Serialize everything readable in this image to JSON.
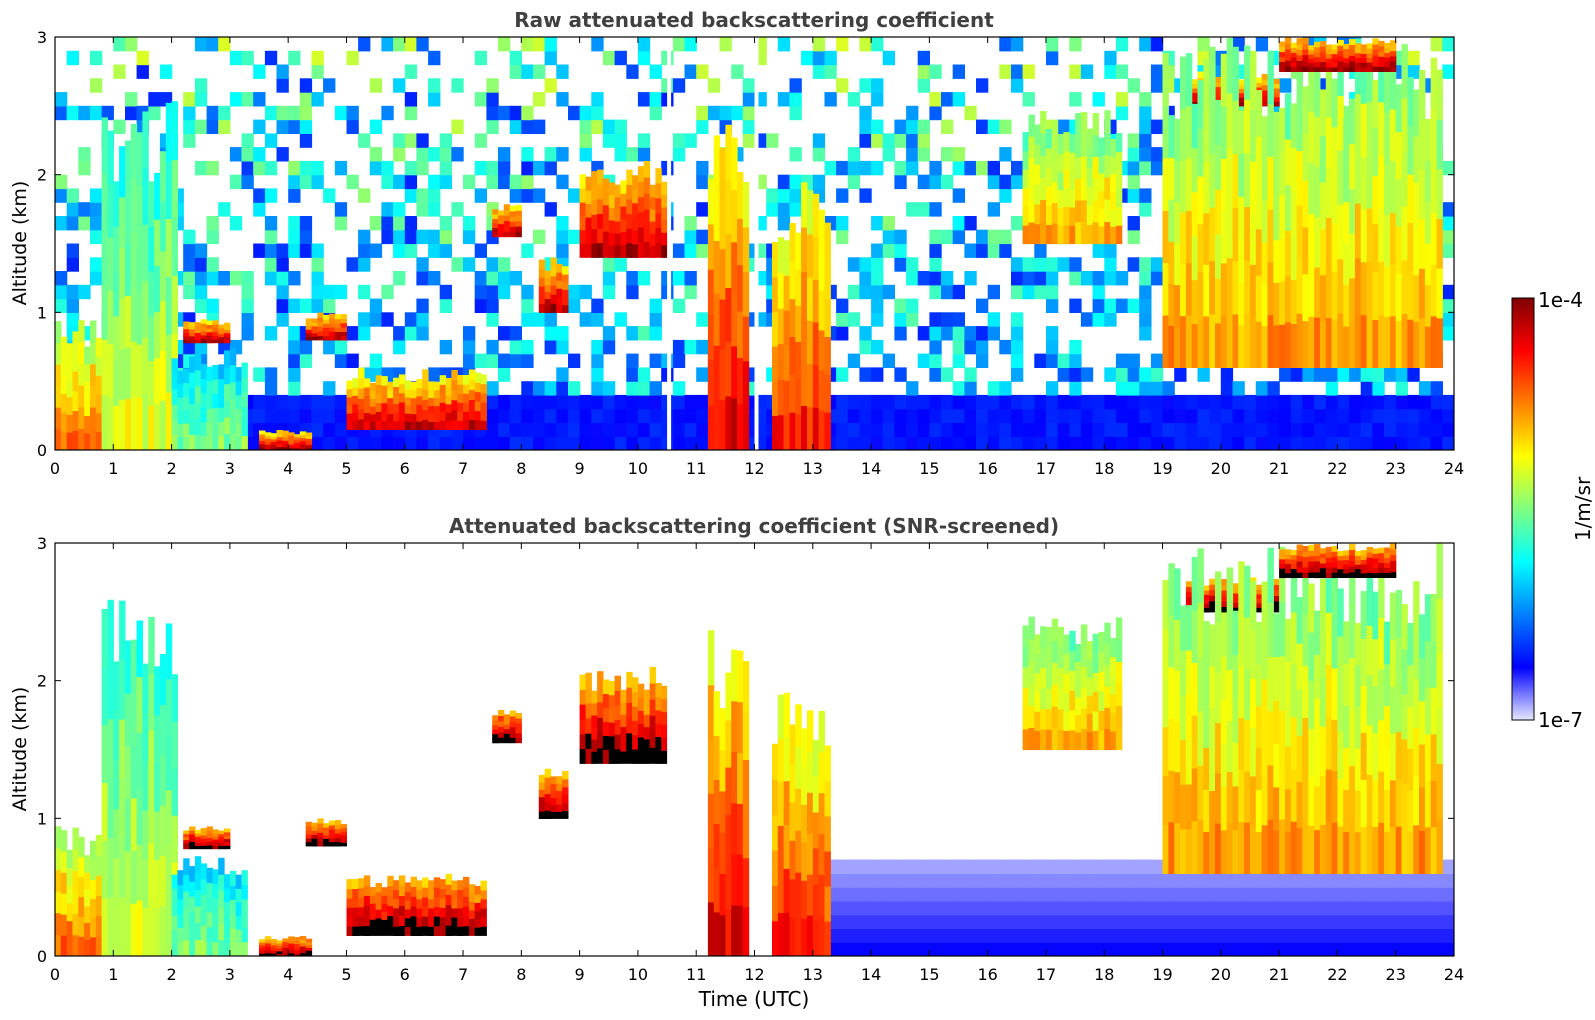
{
  "chart_data": [
    {
      "type": "heatmap",
      "title": "Raw attenuated backscattering coefficient",
      "xlabel": "",
      "ylabel": "Altitude (km)",
      "xlim": [
        0,
        24
      ],
      "ylim": [
        0,
        3
      ],
      "xticks": [
        "0",
        "1",
        "2",
        "3",
        "4",
        "5",
        "6",
        "7",
        "8",
        "9",
        "10",
        "11",
        "12",
        "13",
        "14",
        "15",
        "16",
        "17",
        "18",
        "19",
        "20",
        "21",
        "22",
        "23",
        "24"
      ],
      "yticks": [
        "0",
        "1",
        "2",
        "3"
      ],
      "background_noise_above_km": 0.4,
      "data_gaps_utc": [
        10.5,
        10.8,
        12.0,
        12.3
      ],
      "features": [
        {
          "start": 0.0,
          "end": 0.8,
          "base": 0.0,
          "top": 0.95,
          "level": 0.78
        },
        {
          "start": 0.8,
          "end": 2.1,
          "base": 0.0,
          "top": 2.6,
          "level": 0.6
        },
        {
          "start": 2.0,
          "end": 3.3,
          "base": 0.0,
          "top": 0.75,
          "level": 0.5
        },
        {
          "start": 2.2,
          "end": 3.0,
          "base": 0.78,
          "top": 0.95,
          "level": 0.95
        },
        {
          "start": 3.5,
          "end": 4.4,
          "base": 0.0,
          "top": 0.15,
          "level": 0.95
        },
        {
          "start": 4.3,
          "end": 5.0,
          "base": 0.8,
          "top": 1.0,
          "level": 0.95
        },
        {
          "start": 5.0,
          "end": 7.4,
          "base": 0.15,
          "top": 0.6,
          "level": 0.92
        },
        {
          "start": 7.5,
          "end": 8.0,
          "base": 1.55,
          "top": 1.8,
          "level": 0.95
        },
        {
          "start": 8.3,
          "end": 8.8,
          "base": 1.0,
          "top": 1.4,
          "level": 0.95
        },
        {
          "start": 9.0,
          "end": 10.5,
          "base": 1.4,
          "top": 2.1,
          "level": 0.95
        },
        {
          "start": 11.2,
          "end": 11.9,
          "base": 0.0,
          "top": 2.4,
          "level": 0.9
        },
        {
          "start": 12.3,
          "end": 13.3,
          "base": 0.0,
          "top": 2.0,
          "level": 0.85
        },
        {
          "start": 16.6,
          "end": 18.3,
          "base": 1.5,
          "top": 2.5,
          "level": 0.7
        },
        {
          "start": 19.4,
          "end": 21.0,
          "base": 2.5,
          "top": 2.75,
          "level": 0.95
        },
        {
          "start": 19.0,
          "end": 23.8,
          "base": 0.6,
          "top": 3.0,
          "level": 0.72
        },
        {
          "start": 21.0,
          "end": 23.0,
          "base": 2.75,
          "top": 3.0,
          "level": 0.97
        }
      ]
    },
    {
      "type": "heatmap",
      "title": "Attenuated backscattering coefficient (SNR-screened)",
      "xlabel": "Time (UTC)",
      "ylabel": "Altitude (km)",
      "xlim": [
        0,
        24
      ],
      "ylim": [
        0,
        3
      ],
      "xticks": [
        "0",
        "1",
        "2",
        "3",
        "4",
        "5",
        "6",
        "7",
        "8",
        "9",
        "10",
        "11",
        "12",
        "13",
        "14",
        "15",
        "16",
        "17",
        "18",
        "19",
        "20",
        "21",
        "22",
        "23",
        "24"
      ],
      "yticks": [
        "0",
        "1",
        "2",
        "3"
      ],
      "screened_noise_layer_km": [
        0.0,
        0.7
      ],
      "data_gaps_utc": [
        10.5,
        10.8,
        12.0,
        12.3
      ],
      "features": [
        {
          "start": 0.0,
          "end": 0.8,
          "base": 0.0,
          "top": 0.95,
          "level": 0.78
        },
        {
          "start": 0.8,
          "end": 2.1,
          "base": 0.0,
          "top": 2.6,
          "level": 0.6
        },
        {
          "start": 2.0,
          "end": 3.3,
          "base": 0.0,
          "top": 0.75,
          "level": 0.5
        },
        {
          "start": 2.2,
          "end": 3.0,
          "base": 0.78,
          "top": 0.95,
          "level": 1.0
        },
        {
          "start": 3.5,
          "end": 4.4,
          "base": 0.0,
          "top": 0.15,
          "level": 1.0
        },
        {
          "start": 4.3,
          "end": 5.0,
          "base": 0.8,
          "top": 1.0,
          "level": 1.0
        },
        {
          "start": 5.0,
          "end": 7.4,
          "base": 0.15,
          "top": 0.6,
          "level": 1.0
        },
        {
          "start": 7.5,
          "end": 8.0,
          "base": 1.55,
          "top": 1.8,
          "level": 1.0
        },
        {
          "start": 8.3,
          "end": 8.8,
          "base": 1.0,
          "top": 1.4,
          "level": 1.0
        },
        {
          "start": 9.0,
          "end": 10.5,
          "base": 1.4,
          "top": 2.1,
          "level": 1.0
        },
        {
          "start": 11.2,
          "end": 11.9,
          "base": 0.0,
          "top": 2.4,
          "level": 0.9
        },
        {
          "start": 12.3,
          "end": 13.3,
          "base": 0.0,
          "top": 2.0,
          "level": 0.85
        },
        {
          "start": 16.6,
          "end": 18.3,
          "base": 1.5,
          "top": 2.5,
          "level": 0.7
        },
        {
          "start": 19.4,
          "end": 21.0,
          "base": 2.5,
          "top": 2.75,
          "level": 1.0
        },
        {
          "start": 19.0,
          "end": 23.8,
          "base": 0.6,
          "top": 3.0,
          "level": 0.72
        },
        {
          "start": 21.0,
          "end": 23.0,
          "base": 2.75,
          "top": 3.0,
          "level": 1.0
        }
      ]
    }
  ],
  "colorbar": {
    "label": "1/m/sr",
    "max_label": "1e-4",
    "min_label": "1e-7",
    "scale": "log",
    "colormap": "jet",
    "colors": [
      "#e6e8ff",
      "#0000ff",
      "#0080ff",
      "#00ffff",
      "#80ff80",
      "#ffff00",
      "#ff8000",
      "#ff0000",
      "#800000"
    ]
  },
  "colors": {
    "title": "#404040",
    "axis": "#000000",
    "saturated": "#000000"
  }
}
